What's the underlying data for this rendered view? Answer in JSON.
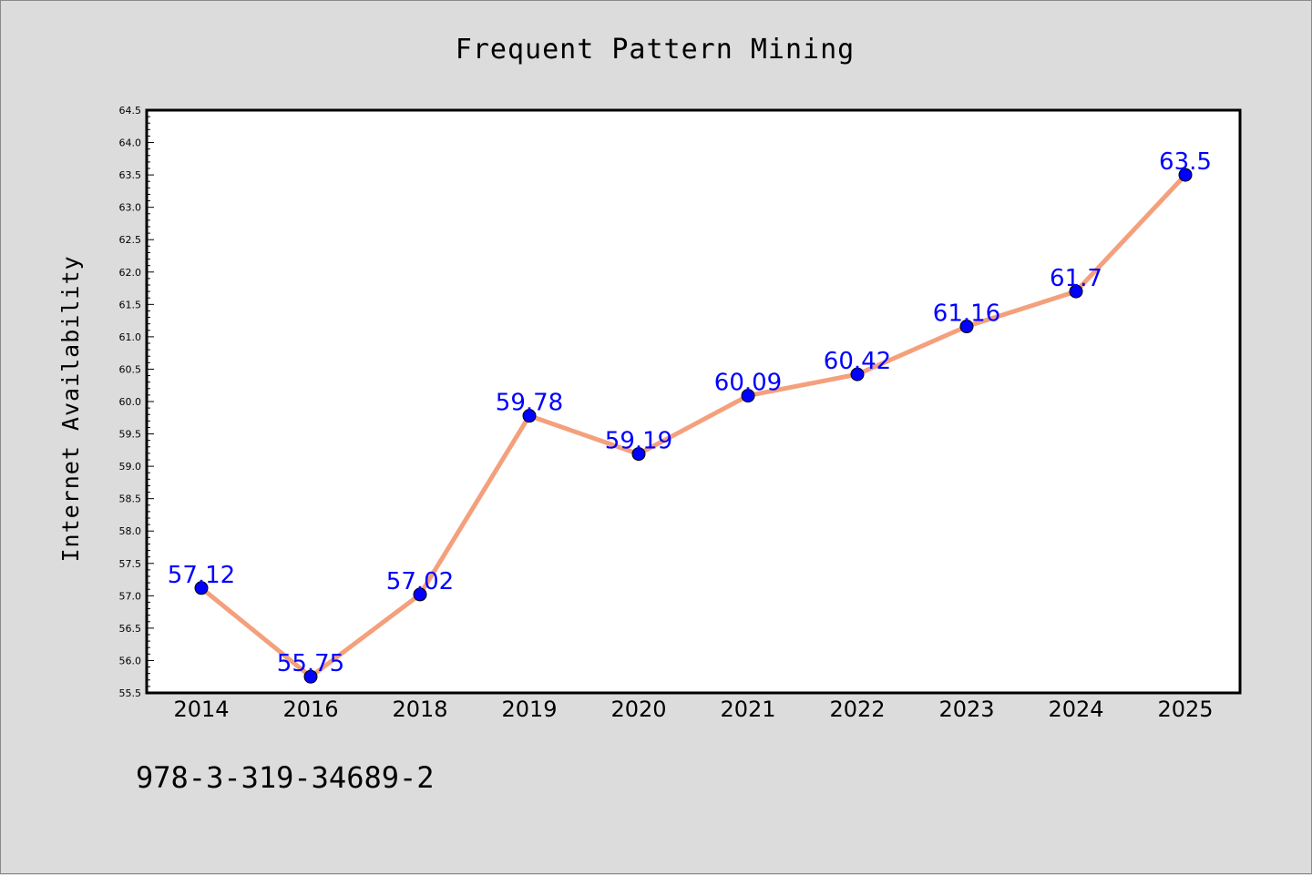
{
  "chart_data": {
    "type": "line",
    "title": "Frequent Pattern Mining",
    "xlabel": "",
    "ylabel": "Internet Availability",
    "categories": [
      "2014",
      "2016",
      "2018",
      "2019",
      "2020",
      "2021",
      "2022",
      "2023",
      "2024",
      "2025"
    ],
    "series": [
      {
        "values": [
          57.12,
          55.75,
          57.02,
          59.78,
          59.19,
          60.09,
          60.42,
          61.16,
          61.7,
          63.5
        ],
        "data_labels": [
          "57.12",
          "55.75",
          "57.02",
          "59.78",
          "59.19",
          "60.09",
          "60.42",
          "61.16",
          "61.7",
          "63.5"
        ],
        "line_color": "#f4a07c",
        "marker_color": "#0000ff"
      }
    ],
    "ylim": [
      55.5,
      64.5
    ],
    "yticks": [
      "55.5",
      "56.0",
      "56.5",
      "57.0",
      "57.5",
      "58.0",
      "58.5",
      "59.0",
      "59.5",
      "60.0",
      "60.5",
      "61.0",
      "61.5",
      "62.0",
      "62.5",
      "63.0",
      "63.5",
      "64.0",
      "64.5"
    ],
    "grid": false,
    "legend": "none",
    "label_color": "#0000ff",
    "background_color": "#dcdcdc",
    "plot_background": "#ffffff"
  },
  "footer": {
    "text": "978-3-319-34689-2"
  }
}
